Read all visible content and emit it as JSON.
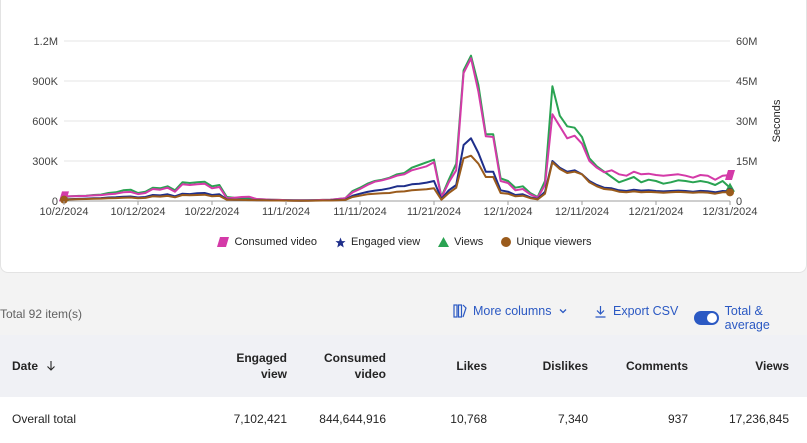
{
  "chart": {
    "left_axis_ticks": [
      "0",
      "300K",
      "600K",
      "900K",
      "1.2M"
    ],
    "right_axis_ticks": [
      "0",
      "15M",
      "30M",
      "45M",
      "60M"
    ],
    "right_axis_label": "Seconds",
    "x_ticks": [
      "10/2/2024",
      "10/12/2024",
      "10/22/2024",
      "11/1/2024",
      "11/11/2024",
      "11/21/2024",
      "12/1/2024",
      "12/11/2024",
      "12/21/2024",
      "12/31/2024"
    ],
    "legend": [
      {
        "label": "Consumed video",
        "icon": "parallelogram",
        "color": "#d43aa8"
      },
      {
        "label": "Engaged view",
        "icon": "star",
        "color": "#1e2e8a"
      },
      {
        "label": "Views",
        "icon": "triangle",
        "color": "#2aa352"
      },
      {
        "label": "Unique viewers",
        "icon": "circle",
        "color": "#9a5b1c"
      }
    ]
  },
  "chart_data": {
    "type": "line",
    "x_start": "10/2/2024",
    "x_end": "12/31/2024",
    "ylim_left": [
      0,
      1200000
    ],
    "ylim_right_seconds": [
      0,
      60000000
    ],
    "series": [
      {
        "name": "Views",
        "axis": "left",
        "color": "#2aa352",
        "values": [
          30000,
          35000,
          38000,
          40000,
          45000,
          48000,
          60000,
          65000,
          80000,
          85000,
          60000,
          70000,
          100000,
          95000,
          110000,
          80000,
          140000,
          135000,
          140000,
          145000,
          110000,
          120000,
          30000,
          25000,
          22000,
          20000,
          15000,
          12000,
          10000,
          8000,
          7000,
          6000,
          5000,
          6000,
          7000,
          8000,
          10000,
          15000,
          20000,
          75000,
          100000,
          130000,
          150000,
          160000,
          175000,
          200000,
          210000,
          250000,
          270000,
          290000,
          310000,
          30000,
          160000,
          280000,
          980000,
          1090000,
          870000,
          500000,
          500000,
          170000,
          150000,
          100000,
          110000,
          60000,
          30000,
          150000,
          860000,
          640000,
          560000,
          550000,
          480000,
          320000,
          260000,
          220000,
          180000,
          140000,
          160000,
          180000,
          140000,
          160000,
          150000,
          130000,
          140000,
          155000,
          150000,
          140000,
          150000,
          140000,
          120000,
          150000,
          100000
        ]
      },
      {
        "name": "Consumed video",
        "axis": "right_seconds",
        "color": "#d43aa8",
        "values": [
          1750000,
          1800000,
          1850000,
          1900000,
          2100000,
          2200000,
          2500000,
          2750000,
          3250000,
          3400000,
          2600000,
          3000000,
          4500000,
          4250000,
          5000000,
          3500000,
          6250000,
          6000000,
          6250000,
          6500000,
          4750000,
          5250000,
          1000000,
          1250000,
          1500000,
          1600000,
          750000,
          600000,
          500000,
          400000,
          350000,
          300000,
          250000,
          300000,
          350000,
          400000,
          500000,
          750000,
          1000000,
          3250000,
          4500000,
          6000000,
          7250000,
          7750000,
          8500000,
          9500000,
          10000000,
          11500000,
          12250000,
          13000000,
          14500000,
          1250000,
          7000000,
          11500000,
          48000000,
          53500000,
          41000000,
          24250000,
          24000000,
          7500000,
          6750000,
          4000000,
          4500000,
          2500000,
          1250000,
          6000000,
          32500000,
          28000000,
          23500000,
          24500000,
          21500000,
          15000000,
          12500000,
          10750000,
          11500000,
          10000000,
          9500000,
          11000000,
          10000000,
          10250000,
          9750000,
          9500000,
          9750000,
          10000000,
          9500000,
          8750000,
          9750000,
          9500000,
          8000000,
          9500000,
          9750000
        ]
      },
      {
        "name": "Engaged view",
        "axis": "left",
        "color": "#1e2e8a",
        "values": [
          12000,
          14000,
          16000,
          18000,
          20000,
          22000,
          26000,
          28000,
          32000,
          34000,
          26000,
          30000,
          45000,
          42000,
          50000,
          35000,
          55000,
          52000,
          58000,
          60000,
          45000,
          50000,
          12000,
          10000,
          9000,
          8000,
          7000,
          6000,
          5000,
          4000,
          3500,
          3000,
          2500,
          3000,
          3500,
          4000,
          5000,
          8000,
          10000,
          40000,
          55000,
          68000,
          78000,
          85000,
          95000,
          110000,
          112000,
          125000,
          130000,
          138000,
          150000,
          15000,
          80000,
          120000,
          420000,
          470000,
          360000,
          220000,
          220000,
          80000,
          70000,
          45000,
          50000,
          28000,
          15000,
          70000,
          300000,
          250000,
          220000,
          230000,
          200000,
          150000,
          120000,
          100000,
          95000,
          80000,
          75000,
          85000,
          78000,
          80000,
          75000,
          72000,
          75000,
          78000,
          75000,
          70000,
          76000,
          73000,
          65000,
          75000,
          72000
        ]
      },
      {
        "name": "Unique viewers",
        "axis": "left",
        "color": "#9a5b1c",
        "values": [
          10000,
          12000,
          14000,
          15000,
          17000,
          18000,
          20000,
          22000,
          25000,
          26000,
          20000,
          23000,
          35000,
          33000,
          38000,
          28000,
          45000,
          43000,
          45000,
          47000,
          35000,
          38000,
          10000,
          9000,
          8000,
          7000,
          6000,
          5000,
          4000,
          3500,
          3000,
          2500,
          2000,
          2500,
          3000,
          3500,
          4000,
          6000,
          8000,
          30000,
          40000,
          50000,
          55000,
          58000,
          60000,
          70000,
          72000,
          80000,
          85000,
          88000,
          95000,
          10000,
          60000,
          100000,
          320000,
          340000,
          280000,
          180000,
          180000,
          60000,
          55000,
          35000,
          40000,
          22000,
          12000,
          55000,
          290000,
          240000,
          210000,
          220000,
          200000,
          140000,
          110000,
          90000,
          85000,
          70000,
          65000,
          72000,
          65000,
          68000,
          65000,
          62000,
          65000,
          68000,
          65000,
          62000,
          66000,
          63000,
          55000,
          65000,
          65000
        ]
      }
    ]
  },
  "toolbar": {
    "total_items": "Total 92 item(s)",
    "more_columns": "More columns",
    "export_csv": "Export CSV",
    "total_average": "Total & average",
    "total_average_on": true
  },
  "table": {
    "headers": {
      "date": "Date",
      "engaged_view_1": "Engaged",
      "engaged_view_2": "view",
      "consumed_video_1": "Consumed",
      "consumed_video_2": "video",
      "likes": "Likes",
      "dislikes": "Dislikes",
      "comments": "Comments",
      "views": "Views"
    },
    "total_row": {
      "label": "Overall total",
      "engaged_view": "7,102,421",
      "consumed_video": "844,644,916",
      "likes": "10,768",
      "dislikes": "7,340",
      "comments": "937",
      "views": "17,236,845"
    }
  }
}
